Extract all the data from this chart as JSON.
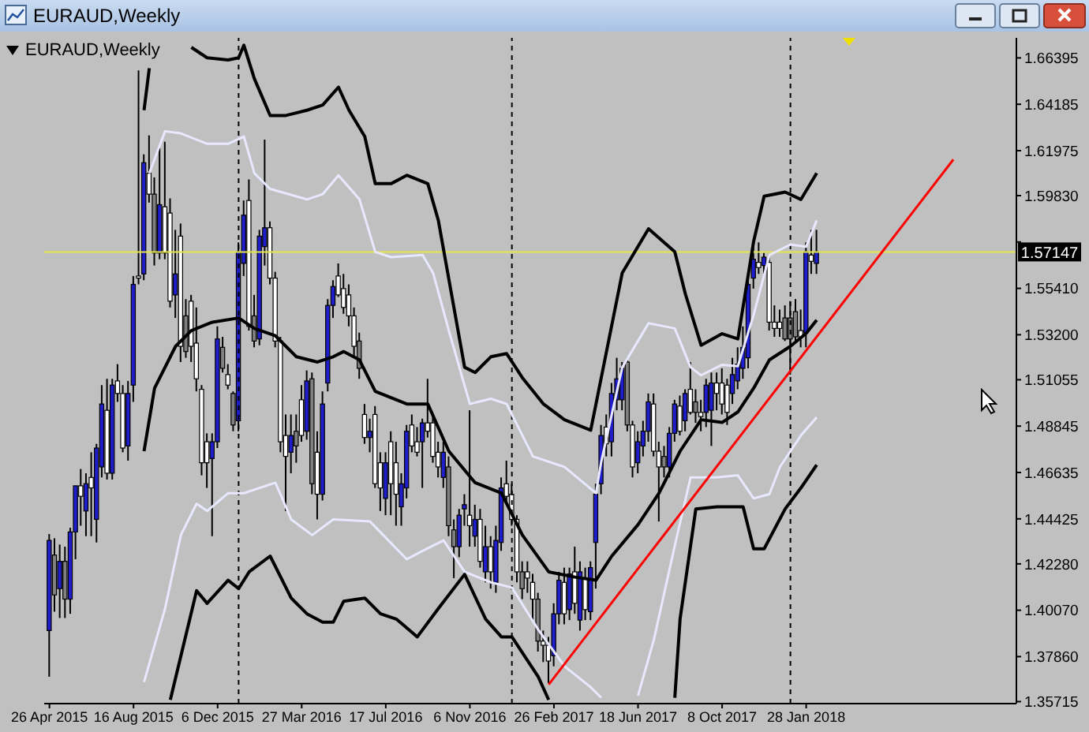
{
  "chart_data": {
    "type": "candlestick",
    "title": "EURAUD,Weekly",
    "subtitle": "EURAUD,Weekly",
    "x": [
      "2015-04-26",
      "2015-05-03",
      "2015-05-10",
      "2015-05-17",
      "2015-05-24",
      "2015-05-31",
      "2015-06-07",
      "2015-06-14",
      "2015-06-21",
      "2015-06-28",
      "2015-07-05",
      "2015-07-12",
      "2015-07-19",
      "2015-07-26",
      "2015-08-02",
      "2015-08-09",
      "2015-08-16",
      "2015-08-23",
      "2015-08-30",
      "2015-09-06",
      "2015-09-13",
      "2015-09-20",
      "2015-09-27",
      "2015-10-04",
      "2015-10-11",
      "2015-10-18",
      "2015-10-25",
      "2015-11-01",
      "2015-11-08",
      "2015-11-15",
      "2015-11-22",
      "2015-11-29",
      "2015-12-06",
      "2015-12-13",
      "2015-12-20",
      "2015-12-27",
      "2016-01-03",
      "2016-01-10",
      "2016-01-17",
      "2016-01-24",
      "2016-01-31",
      "2016-02-07",
      "2016-02-14",
      "2016-02-21",
      "2016-02-28",
      "2016-03-06",
      "2016-03-13",
      "2016-03-20",
      "2016-03-27",
      "2016-04-03",
      "2016-04-10",
      "2016-04-17",
      "2016-04-24",
      "2016-05-01",
      "2016-05-08",
      "2016-05-15",
      "2016-05-22",
      "2016-05-29",
      "2016-06-05",
      "2016-06-12",
      "2016-06-19",
      "2016-06-26",
      "2016-07-03",
      "2016-07-10",
      "2016-07-17",
      "2016-07-24",
      "2016-07-31",
      "2016-08-07",
      "2016-08-14",
      "2016-08-21",
      "2016-08-28",
      "2016-09-04",
      "2016-09-11",
      "2016-09-18",
      "2016-09-25",
      "2016-10-02",
      "2016-10-09",
      "2016-10-16",
      "2016-10-23",
      "2016-10-30",
      "2016-11-06",
      "2016-11-13",
      "2016-11-20",
      "2016-11-27",
      "2016-12-04",
      "2016-12-11",
      "2016-12-18",
      "2016-12-25",
      "2017-01-01",
      "2017-01-08",
      "2017-01-15",
      "2017-01-22",
      "2017-01-29",
      "2017-02-05",
      "2017-02-12",
      "2017-02-19",
      "2017-02-26",
      "2017-03-05",
      "2017-03-12",
      "2017-03-19",
      "2017-03-26",
      "2017-04-02",
      "2017-04-09",
      "2017-04-16",
      "2017-04-23",
      "2017-04-30",
      "2017-05-07",
      "2017-05-14",
      "2017-05-21",
      "2017-05-28",
      "2017-06-04",
      "2017-06-11",
      "2017-06-18",
      "2017-06-25",
      "2017-07-02",
      "2017-07-09",
      "2017-07-16",
      "2017-07-23",
      "2017-07-30",
      "2017-08-06",
      "2017-08-13",
      "2017-08-20",
      "2017-08-27",
      "2017-09-03",
      "2017-09-10",
      "2017-09-17",
      "2017-09-24",
      "2017-10-01",
      "2017-10-08",
      "2017-10-15",
      "2017-10-22",
      "2017-10-29",
      "2017-11-05",
      "2017-11-12",
      "2017-11-19",
      "2017-11-26",
      "2017-12-03",
      "2017-12-10",
      "2017-12-17",
      "2017-12-24",
      "2017-12-31",
      "2018-01-07",
      "2018-01-14",
      "2018-01-21",
      "2018-01-28",
      "2018-02-04",
      "2018-02-11"
    ],
    "ohlc": [
      [
        1.391,
        1.437,
        1.369,
        1.434
      ],
      [
        1.427,
        1.435,
        1.4,
        1.408
      ],
      [
        1.411,
        1.432,
        1.397,
        1.424
      ],
      [
        1.424,
        1.431,
        1.397,
        1.406
      ],
      [
        1.406,
        1.44,
        1.399,
        1.438
      ],
      [
        1.438,
        1.46,
        1.425,
        1.46
      ],
      [
        1.46,
        1.468,
        1.441,
        1.455
      ],
      [
        1.448,
        1.466,
        1.436,
        1.461
      ],
      [
        1.464,
        1.476,
        1.436,
        1.459
      ],
      [
        1.444,
        1.48,
        1.433,
        1.478
      ],
      [
        1.469,
        1.508,
        1.464,
        1.499
      ],
      [
        1.496,
        1.511,
        1.463,
        1.466
      ],
      [
        1.466,
        1.511,
        1.463,
        1.508
      ],
      [
        1.51,
        1.518,
        1.5,
        1.504
      ],
      [
        1.504,
        1.508,
        1.476,
        1.478
      ],
      [
        1.479,
        1.51,
        1.472,
        1.504
      ],
      [
        1.508,
        1.56,
        1.5,
        1.556
      ],
      [
        1.56,
        1.658,
        1.556,
        1.559
      ],
      [
        1.561,
        1.618,
        1.558,
        1.614
      ],
      [
        1.609,
        1.627,
        1.595,
        1.599
      ],
      [
        1.599,
        1.607,
        1.565,
        1.571
      ],
      [
        1.571,
        1.621,
        1.568,
        1.594
      ],
      [
        1.593,
        1.624,
        1.568,
        1.571
      ],
      [
        1.59,
        1.597,
        1.545,
        1.548
      ],
      [
        1.551,
        1.582,
        1.54,
        1.561
      ],
      [
        1.579,
        1.585,
        1.519,
        1.5265
      ],
      [
        1.541,
        1.549,
        1.521,
        1.524
      ],
      [
        1.548,
        1.551,
        1.519,
        1.5265
      ],
      [
        1.528,
        1.545,
        1.505,
        1.511
      ],
      [
        1.506,
        1.508,
        1.465,
        1.471
      ],
      [
        1.481,
        1.485,
        1.459,
        1.471
      ],
      [
        1.473,
        1.485,
        1.436,
        1.481
      ],
      [
        1.481,
        1.536,
        1.478,
        1.53
      ],
      [
        1.526,
        1.531,
        1.514,
        1.516
      ],
      [
        1.513,
        1.518,
        1.506,
        1.508
      ],
      [
        1.504,
        1.505,
        1.486,
        1.489
      ],
      [
        1.491,
        1.576,
        1.486,
        1.5715
      ],
      [
        1.566,
        1.596,
        1.56,
        1.589
      ],
      [
        1.596,
        1.606,
        1.534,
        1.536
      ],
      [
        1.541,
        1.551,
        1.526,
        1.529
      ],
      [
        1.53,
        1.582,
        1.527,
        1.579
      ],
      [
        1.574,
        1.625,
        1.565,
        1.583
      ],
      [
        1.583,
        1.586,
        1.556,
        1.559
      ],
      [
        1.559,
        1.562,
        1.526,
        1.529
      ],
      [
        1.529,
        1.531,
        1.476,
        1.481
      ],
      [
        1.484,
        1.494,
        1.448,
        1.474
      ],
      [
        1.476,
        1.494,
        1.466,
        1.484
      ],
      [
        1.486,
        1.494,
        1.471,
        1.479
      ],
      [
        1.501,
        1.508,
        1.481,
        1.484
      ],
      [
        1.486,
        1.515,
        1.482,
        1.51
      ],
      [
        1.511,
        1.514,
        1.456,
        1.461
      ],
      [
        1.476,
        1.486,
        1.444,
        1.456
      ],
      [
        1.456,
        1.505,
        1.453,
        1.499
      ],
      [
        1.509,
        1.549,
        1.505,
        1.546
      ],
      [
        1.546,
        1.558,
        1.54,
        1.555
      ],
      [
        1.56,
        1.566,
        1.55,
        1.551
      ],
      [
        1.554,
        1.561,
        1.542,
        1.545
      ],
      [
        1.551,
        1.556,
        1.536,
        1.541
      ],
      [
        1.541,
        1.545,
        1.521,
        1.5265
      ],
      [
        1.529,
        1.533,
        1.511,
        1.516
      ],
      [
        1.494,
        1.499,
        1.48,
        1.483
      ],
      [
        1.483,
        1.492,
        1.476,
        1.486
      ],
      [
        1.494,
        1.498,
        1.459,
        1.461
      ],
      [
        1.471,
        1.476,
        1.448,
        1.459
      ],
      [
        1.454,
        1.476,
        1.446,
        1.471
      ],
      [
        1.481,
        1.486,
        1.446,
        1.461
      ],
      [
        1.471,
        1.481,
        1.441,
        1.456
      ],
      [
        1.45,
        1.466,
        1.441,
        1.461
      ],
      [
        1.459,
        1.489,
        1.454,
        1.486
      ],
      [
        1.489,
        1.494,
        1.476,
        1.479
      ],
      [
        1.481,
        1.488,
        1.474,
        1.476
      ],
      [
        1.481,
        1.492,
        1.459,
        1.49
      ],
      [
        1.49,
        1.511,
        1.483,
        1.486
      ],
      [
        1.49,
        1.494,
        1.471,
        1.474
      ],
      [
        1.476,
        1.481,
        1.464,
        1.469
      ],
      [
        1.464,
        1.481,
        1.459,
        1.476
      ],
      [
        1.469,
        1.474,
        1.436,
        1.441
      ],
      [
        1.439,
        1.444,
        1.416,
        1.431
      ],
      [
        1.431,
        1.449,
        1.426,
        1.446
      ],
      [
        1.449,
        1.456,
        1.441,
        1.451
      ],
      [
        1.446,
        1.496,
        1.431,
        1.441
      ],
      [
        1.436,
        1.451,
        1.431,
        1.444
      ],
      [
        1.444,
        1.449,
        1.421,
        1.424
      ],
      [
        1.419,
        1.441,
        1.414,
        1.431
      ],
      [
        1.431,
        1.436,
        1.411,
        1.419
      ],
      [
        1.414,
        1.441,
        1.409,
        1.434
      ],
      [
        1.433,
        1.464,
        1.429,
        1.459
      ],
      [
        1.461,
        1.472,
        1.451,
        1.455
      ],
      [
        1.456,
        1.461,
        1.441,
        1.444
      ],
      [
        1.444,
        1.446,
        1.414,
        1.419
      ],
      [
        1.419,
        1.424,
        1.406,
        1.411
      ],
      [
        1.419,
        1.424,
        1.409,
        1.416
      ],
      [
        1.414,
        1.418,
        1.396,
        1.406
      ],
      [
        1.406,
        1.409,
        1.381,
        1.386
      ],
      [
        1.386,
        1.391,
        1.376,
        1.384
      ],
      [
        1.384,
        1.388,
        1.366,
        1.3765
      ],
      [
        1.379,
        1.404,
        1.374,
        1.399
      ],
      [
        1.399,
        1.419,
        1.394,
        1.415
      ],
      [
        1.414,
        1.421,
        1.394,
        1.399
      ],
      [
        1.401,
        1.421,
        1.396,
        1.418
      ],
      [
        1.419,
        1.431,
        1.399,
        1.404
      ],
      [
        1.396,
        1.424,
        1.391,
        1.419
      ],
      [
        1.416,
        1.421,
        1.396,
        1.401
      ],
      [
        1.4,
        1.424,
        1.396,
        1.421
      ],
      [
        1.433,
        1.461,
        1.411,
        1.456
      ],
      [
        1.461,
        1.489,
        1.456,
        1.484
      ],
      [
        1.488,
        1.494,
        1.474,
        1.48
      ],
      [
        1.481,
        1.509,
        1.474,
        1.504
      ],
      [
        1.501,
        1.521,
        1.496,
        1.511
      ],
      [
        1.501,
        1.519,
        1.496,
        1.516
      ],
      [
        1.519,
        1.521,
        1.486,
        1.489
      ],
      [
        1.489,
        1.491,
        1.464,
        1.469
      ],
      [
        1.471,
        1.486,
        1.466,
        1.481
      ],
      [
        1.479,
        1.491,
        1.474,
        1.486
      ],
      [
        1.486,
        1.504,
        1.481,
        1.5
      ],
      [
        1.499,
        1.504,
        1.474,
        1.4765
      ],
      [
        1.4765,
        1.481,
        1.443,
        1.469
      ],
      [
        1.474,
        1.479,
        1.464,
        1.469
      ],
      [
        1.469,
        1.488,
        1.464,
        1.485
      ],
      [
        1.485,
        1.501,
        1.481,
        1.499
      ],
      [
        1.498,
        1.503,
        1.484,
        1.486
      ],
      [
        1.491,
        1.506,
        1.486,
        1.504
      ],
      [
        1.506,
        1.519,
        1.494,
        1.495
      ],
      [
        1.5,
        1.506,
        1.49,
        1.495
      ],
      [
        1.495,
        1.501,
        1.486,
        1.493
      ],
      [
        1.495,
        1.511,
        1.488,
        1.508
      ],
      [
        1.496,
        1.514,
        1.479,
        1.509
      ],
      [
        1.509,
        1.514,
        1.496,
        1.504
      ],
      [
        1.509,
        1.516,
        1.494,
        1.499
      ],
      [
        1.508,
        1.511,
        1.489,
        1.495
      ],
      [
        1.504,
        1.521,
        1.499,
        1.513
      ],
      [
        1.51,
        1.526,
        1.506,
        1.518
      ],
      [
        1.516,
        1.536,
        1.511,
        1.526
      ],
      [
        1.521,
        1.561,
        1.516,
        1.556
      ],
      [
        1.559,
        1.574,
        1.554,
        1.568
      ],
      [
        1.5665,
        1.576,
        1.561,
        1.564
      ],
      [
        1.565,
        1.571,
        1.561,
        1.569
      ],
      [
        1.5665,
        1.57,
        1.534,
        1.538
      ],
      [
        1.538,
        1.546,
        1.531,
        1.535
      ],
      [
        1.538,
        1.544,
        1.531,
        1.535
      ],
      [
        1.54,
        1.546,
        1.529,
        1.53
      ],
      [
        1.54,
        1.548,
        1.513,
        1.53
      ],
      [
        1.543,
        1.549,
        1.528,
        1.531
      ],
      [
        1.534,
        1.544,
        1.526,
        1.531
      ],
      [
        1.533,
        1.576,
        1.526,
        1.5715
      ],
      [
        1.57,
        1.582,
        1.561,
        1.567
      ],
      [
        1.566,
        1.582,
        1.561,
        1.5715
      ]
    ],
    "colors": [
      "#1e1ecc",
      "#808080",
      "#1e1ecc",
      "#808080",
      "#1e1ecc",
      "#1e1ecc",
      "#ffffff",
      "#1e1ecc",
      "#ffffff",
      "#1e1ecc",
      "#1e1ecc",
      "#ffffff",
      "#1e1ecc",
      "#ffffff",
      "#ffffff",
      "#1e1ecc",
      "#1e1ecc",
      "#ffffff",
      "#1e1ecc",
      "#ffffff",
      "#808080",
      "#1e1ecc",
      "#ffffff",
      "#ffffff",
      "#1e1ecc",
      "#ffffff",
      "#808080",
      "#ffffff",
      "#ffffff",
      "#ffffff",
      "#ffffff",
      "#1e1ecc",
      "#1e1ecc",
      "#808080",
      "#ffffff",
      "#808080",
      "#1e1ecc",
      "#1e1ecc",
      "#ffffff",
      "#808080",
      "#1e1ecc",
      "#1e1ecc",
      "#ffffff",
      "#ffffff",
      "#ffffff",
      "#ffffff",
      "#1e1ecc",
      "#808080",
      "#ffffff",
      "#1e1ecc",
      "#808080",
      "#ffffff",
      "#1e1ecc",
      "#1e1ecc",
      "#1e1ecc",
      "#ffffff",
      "#ffffff",
      "#ffffff",
      "#ffffff",
      "#808080",
      "#ffffff",
      "#1e1ecc",
      "#ffffff",
      "#ffffff",
      "#1e1ecc",
      "#ffffff",
      "#ffffff",
      "#1e1ecc",
      "#1e1ecc",
      "#ffffff",
      "#ffffff",
      "#1e1ecc",
      "#ffffff",
      "#ffffff",
      "#ffffff",
      "#1e1ecc",
      "#808080",
      "#808080",
      "#1e1ecc",
      "#1e1ecc",
      "#ffffff",
      "#1e1ecc",
      "#ffffff",
      "#1e1ecc",
      "#ffffff",
      "#1e1ecc",
      "#1e1ecc",
      "#ffffff",
      "#ffffff",
      "#ffffff",
      "#808080",
      "#ffffff",
      "#ffffff",
      "#808080",
      "#ffffff",
      "#ffffff",
      "#1e1ecc",
      "#1e1ecc",
      "#ffffff",
      "#1e1ecc",
      "#ffffff",
      "#1e1ecc",
      "#ffffff",
      "#1e1ecc",
      "#1e1ecc",
      "#1e1ecc",
      "#ffffff",
      "#1e1ecc",
      "#1e1ecc",
      "#1e1ecc",
      "#808080",
      "#ffffff",
      "#1e1ecc",
      "#1e1ecc",
      "#1e1ecc",
      "#ffffff",
      "#ffffff",
      "#808080",
      "#1e1ecc",
      "#1e1ecc",
      "#ffffff",
      "#1e1ecc",
      "#ffffff",
      "#808080",
      "#ffffff",
      "#1e1ecc",
      "#1e1ecc",
      "#ffffff",
      "#ffffff",
      "#ffffff",
      "#1e1ecc",
      "#1e1ecc",
      "#1e1ecc",
      "#1e1ecc",
      "#1e1ecc",
      "#ffffff",
      "#1e1ecc",
      "#ffffff",
      "#ffffff",
      "#ffffff",
      "#808080",
      "#808080",
      "#808080",
      "#ffffff",
      "#1e1ecc",
      "#ffffff",
      "#1e1ecc"
    ],
    "series": [
      {
        "type": "line",
        "color": "#000000",
        "x": [
          "2015-08-30",
          "2015-09-06",
          "2015-09-13",
          "2015-10-25",
          "2015-11-01",
          "2015-11-22",
          "2015-12-20",
          "2016-01-03",
          "2016-01-10",
          "2016-01-24",
          "2016-02-14",
          "2016-03-06",
          "2016-04-03",
          "2016-04-24",
          "2016-05-15",
          "2016-05-29",
          "2016-06-19",
          "2016-07-03",
          "2016-07-24",
          "2016-08-14",
          "2016-09-11",
          "2016-09-25",
          "2016-10-30",
          "2016-11-13",
          "2016-12-04",
          "2016-12-25",
          "2017-01-15",
          "2017-02-12",
          "2017-03-12",
          "2017-04-16",
          "2017-04-30",
          "2017-05-28",
          "2017-07-02",
          "2017-08-06",
          "2017-08-20",
          "2017-09-10",
          "2017-10-08",
          "2017-10-29",
          "2017-11-19",
          "2017-12-03",
          "2017-12-31",
          "2018-01-21",
          "2018-02-11"
        ],
        "values": [
          1.639,
          1.659,
          null,
          null,
          1.669,
          1.664,
          1.663,
          1.664,
          1.67,
          1.654,
          1.6365,
          1.6365,
          1.639,
          1.6415,
          1.65,
          1.639,
          1.6265,
          1.604,
          1.604,
          1.608,
          1.604,
          1.5865,
          1.5165,
          1.514,
          1.5215,
          1.523,
          1.5115,
          1.499,
          1.4915,
          1.4865,
          1.5115,
          1.5615,
          1.5825,
          1.5715,
          1.5515,
          1.527,
          1.5325,
          1.53,
          1.5765,
          1.598,
          1.6,
          1.5965,
          1.609
        ]
      },
      {
        "type": "line",
        "color": "#e8e8ff",
        "x": [
          "2015-09-06",
          "2015-09-27",
          "2015-10-18",
          "2015-11-22",
          "2015-12-20",
          "2016-01-10",
          "2016-01-24",
          "2016-02-14",
          "2016-04-03",
          "2016-04-24",
          "2016-05-15",
          "2016-06-12",
          "2016-07-03",
          "2016-07-24",
          "2016-09-04",
          "2016-09-18",
          "2016-10-09",
          "2016-11-06",
          "2016-12-04",
          "2016-12-25",
          "2017-01-29",
          "2017-03-12",
          "2017-04-23",
          "2017-04-30",
          "2017-05-28",
          "2017-07-02",
          "2017-08-06",
          "2017-08-27",
          "2017-09-10",
          "2017-10-08",
          "2017-10-29",
          "2017-11-19",
          "2017-12-10",
          "2018-01-07",
          "2018-01-28",
          "2018-02-11"
        ],
        "values": [
          1.609,
          1.629,
          1.628,
          1.623,
          1.623,
          1.6265,
          1.609,
          1.6015,
          1.5965,
          1.599,
          1.608,
          1.5965,
          1.5715,
          1.569,
          1.57,
          1.5615,
          1.534,
          1.499,
          1.5015,
          1.499,
          1.474,
          1.469,
          1.4565,
          1.4715,
          1.5165,
          1.5375,
          1.535,
          1.5165,
          1.5127,
          1.5177,
          1.517,
          1.5415,
          1.57,
          1.575,
          1.574,
          1.5865
        ]
      },
      {
        "type": "line",
        "color": "#000000",
        "x": [
          "2015-08-30",
          "2015-09-13",
          "2015-10-11",
          "2015-11-01",
          "2015-11-29",
          "2016-01-03",
          "2016-01-24",
          "2016-02-21",
          "2016-03-20",
          "2016-04-17",
          "2016-05-08",
          "2016-05-22",
          "2016-06-12",
          "2016-07-03",
          "2016-07-24",
          "2016-08-14",
          "2016-09-11",
          "2016-10-09",
          "2016-11-13",
          "2016-12-18",
          "2017-01-15",
          "2017-02-19",
          "2017-03-26",
          "2017-04-23",
          "2017-05-14",
          "2017-06-18",
          "2017-07-16",
          "2017-08-13",
          "2017-09-10",
          "2017-10-08",
          "2017-10-29",
          "2017-11-19",
          "2017-12-10",
          "2018-01-07",
          "2018-01-28",
          "2018-02-11"
        ],
        "values": [
          1.4765,
          1.5065,
          1.5265,
          1.534,
          1.538,
          1.54,
          1.535,
          1.5315,
          1.5215,
          1.519,
          1.5215,
          1.524,
          1.52,
          1.505,
          1.502,
          1.499,
          1.499,
          1.4765,
          1.4615,
          1.4565,
          1.4365,
          1.419,
          1.4165,
          1.415,
          1.4265,
          1.4415,
          1.4565,
          1.4765,
          1.4915,
          1.4902,
          1.4952,
          1.5065,
          1.52,
          1.5265,
          1.5327,
          1.539
        ]
      },
      {
        "type": "line",
        "color": "#e8e8ff",
        "x": [
          "2015-08-30",
          "2015-09-27",
          "2015-10-18",
          "2015-11-08",
          "2015-11-22",
          "2015-12-20",
          "2016-01-10",
          "2016-02-21",
          "2016-03-13",
          "2016-04-10",
          "2016-05-08",
          "2016-06-26",
          "2016-07-24",
          "2016-08-14",
          "2016-09-04",
          "2016-10-02",
          "2016-10-30",
          "2016-12-04",
          "2017-01-01",
          "2017-02-05",
          "2017-03-12",
          "2017-04-16",
          "2017-04-30",
          "2017-05-07",
          "2017-06-11",
          "2017-06-18",
          "2017-07-09",
          "2017-08-06",
          "2017-08-27",
          "2017-10-01",
          "2017-10-29",
          "2017-11-19",
          "2017-12-10",
          "2017-12-24",
          "2018-01-21",
          "2018-02-11"
        ],
        "values": [
          1.3665,
          1.4015,
          1.4365,
          1.4515,
          1.448,
          1.4565,
          1.4565,
          1.4615,
          1.444,
          1.4365,
          1.444,
          1.443,
          1.4327,
          1.425,
          1.429,
          1.434,
          1.419,
          1.414,
          1.4115,
          1.3915,
          1.374,
          1.364,
          1.359,
          null,
          null,
          1.36,
          1.3865,
          1.4315,
          1.464,
          1.464,
          1.465,
          1.454,
          1.456,
          1.469,
          1.484,
          1.4927
        ]
      },
      {
        "type": "line",
        "color": "#000000",
        "x": [
          "2015-10-04",
          "2015-11-08",
          "2015-11-22",
          "2015-12-20",
          "2016-01-03",
          "2016-01-17",
          "2016-02-14",
          "2016-03-13",
          "2016-04-03",
          "2016-04-24",
          "2016-05-08",
          "2016-05-22",
          "2016-06-19",
          "2016-07-10",
          "2016-07-31",
          "2016-08-28",
          "2016-09-25",
          "2016-10-30",
          "2016-11-27",
          "2016-12-18",
          "2017-01-01",
          "2017-02-05",
          "2017-02-19",
          "2017-02-26",
          "2017-07-30",
          "2017-08-06",
          "2017-08-13",
          "2017-09-03",
          "2017-10-01",
          "2017-11-05",
          "2017-11-19",
          "2017-12-03",
          "2017-12-31",
          "2018-01-21",
          "2018-02-11"
        ],
        "values": [
          1.358,
          1.41,
          1.404,
          1.415,
          1.411,
          1.419,
          1.4265,
          1.4065,
          1.399,
          1.395,
          1.395,
          1.405,
          1.4065,
          1.399,
          1.3965,
          1.388,
          1.4015,
          1.4178,
          1.3965,
          1.388,
          1.388,
          1.369,
          1.358,
          null,
          null,
          1.359,
          1.3965,
          1.449,
          1.45,
          1.45,
          1.43,
          1.43,
          1.449,
          1.459,
          1.47
        ]
      },
      {
        "type": "line",
        "color": "#ff0000",
        "x": [
          "2017-02-19",
          "2018-08-12"
        ],
        "values": [
          1.3653,
          1.6155
        ]
      }
    ],
    "xlim": [
      "2015-04-19",
      "2018-11-04"
    ],
    "xticks": [
      {
        "value": "2015-04-26",
        "label": "26 Apr 2015"
      },
      {
        "value": "2015-08-16",
        "label": "16 Aug 2015"
      },
      {
        "value": "2015-12-06",
        "label": "6 Dec 2015"
      },
      {
        "value": "2016-03-27",
        "label": "27 Mar 2016"
      },
      {
        "value": "2016-07-17",
        "label": "17 Jul 2016"
      },
      {
        "value": "2016-11-06",
        "label": "6 Nov 2016"
      },
      {
        "value": "2017-02-26",
        "label": "26 Feb 2017"
      },
      {
        "value": "2017-06-18",
        "label": "18 Jun 2017"
      },
      {
        "value": "2017-10-08",
        "label": "8 Oct 2017"
      },
      {
        "value": "2018-01-28",
        "label": "28 Jan 2018"
      }
    ],
    "ylim": [
      1.3562,
      1.6735
    ],
    "yticks": [
      1.66395,
      1.64185,
      1.61975,
      {
        "value": 1.5983,
        "label": "1.59830"
      },
      {
        "value": 1.5762,
        "label": null
      },
      {
        "value": 1.5541,
        "label": "1.55410"
      },
      {
        "value": 1.532,
        "label": "1.53200"
      },
      1.51055,
      1.48845,
      1.46635,
      1.44425,
      {
        "value": 1.4228,
        "label": "1.42280"
      },
      {
        "value": 1.4007,
        "label": "1.40070"
      },
      {
        "value": 1.3786,
        "label": "1.37860"
      },
      1.35715
    ],
    "ref_lines": [
      {
        "axis": "x",
        "value": "2016-01-03",
        "color": "#000000",
        "line_style": "dashed"
      },
      {
        "axis": "x",
        "value": "2017-01-01",
        "color": "#000000",
        "line_style": "dashed"
      },
      {
        "axis": "x",
        "value": "2018-01-07",
        "color": "#000000",
        "line_style": "dashed"
      },
      {
        "axis": "y",
        "value": 1.57147,
        "label": "1.57147",
        "color": "#e6e64c",
        "line_style": "solid"
      }
    ]
  }
}
